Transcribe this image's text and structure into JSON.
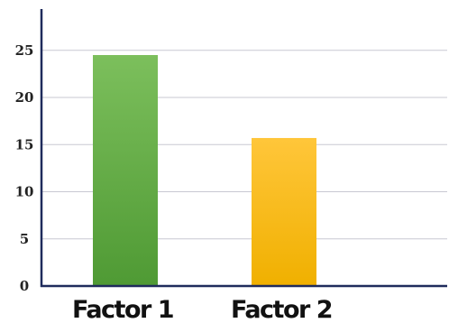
{
  "chart_data": {
    "type": "bar",
    "categories": [
      "Factor 1",
      "Factor 2"
    ],
    "values": [
      24.5,
      15.7
    ],
    "ylim": [
      0,
      29
    ],
    "yticks": [
      0,
      5,
      10,
      15,
      20,
      25
    ],
    "grid": true,
    "bar_colors": [
      {
        "top": "#7cbf5c",
        "bottom": "#4f9a34"
      },
      {
        "top": "#ffc63a",
        "bottom": "#f0b000"
      }
    ],
    "axis_color": "#1f2b5c",
    "grid_color": "#c8c8d2"
  }
}
